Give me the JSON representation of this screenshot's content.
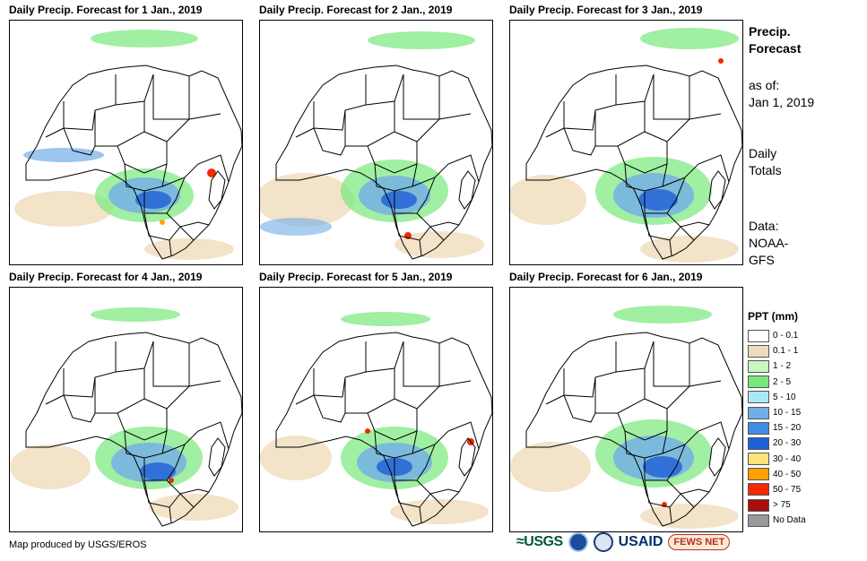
{
  "panels": [
    {
      "title": "Daily Precip. Forecast for 1 Jan., 2019"
    },
    {
      "title": "Daily Precip. Forecast for 2 Jan., 2019"
    },
    {
      "title": "Daily Precip. Forecast for 3 Jan., 2019"
    },
    {
      "title": "Daily Precip. Forecast for 4 Jan., 2019"
    },
    {
      "title": "Daily Precip. Forecast for 5 Jan., 2019"
    },
    {
      "title": "Daily Precip. Forecast for 6 Jan., 2019"
    }
  ],
  "side": {
    "title_line1": "Precip.",
    "title_line2": "Forecast",
    "asof_label": "as of:",
    "asof_date": "Jan 1, 2019",
    "totals_line1": "Daily",
    "totals_line2": "Totals",
    "data_line1": "Data:",
    "data_line2": "NOAA-",
    "data_line3": "GFS"
  },
  "legend": {
    "title": "PPT (mm)",
    "items": [
      {
        "label": "0 - 0.1",
        "color": "#ffffff"
      },
      {
        "label": "0.1 - 1",
        "color": "#efdcbc"
      },
      {
        "label": "1 - 2",
        "color": "#c8f7c0"
      },
      {
        "label": "2 - 5",
        "color": "#78e87a"
      },
      {
        "label": "5 - 10",
        "color": "#a9e9f5"
      },
      {
        "label": "10 - 15",
        "color": "#72ade8"
      },
      {
        "label": "15 - 20",
        "color": "#3f8ce6"
      },
      {
        "label": "20 - 30",
        "color": "#1f5fd6"
      },
      {
        "label": "30 - 40",
        "color": "#ffe27a"
      },
      {
        "label": "40 - 50",
        "color": "#ffa200"
      },
      {
        "label": "50 - 75",
        "color": "#f22a00"
      },
      {
        "label": "> 75",
        "color": "#a5100f"
      },
      {
        "label": "No Data",
        "color": "#9a9a9a"
      }
    ]
  },
  "credit": "Map produced by USGS/EROS",
  "logos": {
    "usgs": "≈USGS",
    "usaid": "USAID",
    "fews": "FEWS NET"
  },
  "colors": {
    "land_light": "#efdcbc",
    "green": "#78e87a",
    "blue": "#3f8ce6",
    "dark_blue": "#1f5fd6",
    "red": "#f22a00"
  }
}
